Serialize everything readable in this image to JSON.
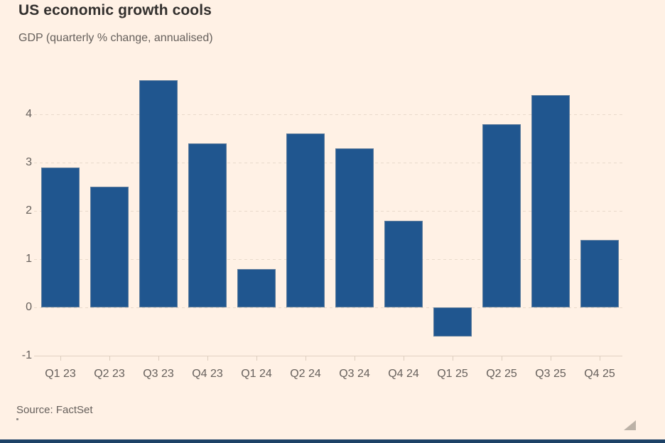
{
  "header": {
    "title": "US economic growth cools",
    "subtitle": "GDP (quarterly % change, annualised)"
  },
  "footer": {
    "source": "Source: FactSet"
  },
  "colors": {
    "background": "#FFF1E5",
    "bar": "#20568F",
    "title_text": "#33302E",
    "muted_text": "#66605C",
    "gridline": "#E9DACB",
    "baseline": "#E0D1C2",
    "footer_bar": "#1C4166",
    "resize_handle": "#BCB2A7"
  },
  "chart_data": {
    "type": "bar",
    "title": "US economic growth cools",
    "subtitle": "GDP (quarterly % change, annualised)",
    "categories": [
      "Q1 23",
      "Q2 23",
      "Q3 23",
      "Q4 23",
      "Q1 24",
      "Q2 24",
      "Q3 24",
      "Q4 24",
      "Q1 25",
      "Q2 25",
      "Q3 25",
      "Q4 25"
    ],
    "values": [
      2.9,
      2.5,
      4.7,
      3.4,
      0.8,
      3.6,
      3.3,
      1.8,
      -0.6,
      3.8,
      4.4,
      1.4
    ],
    "xlabel": "",
    "ylabel": "",
    "ylim": [
      -1,
      4.8
    ],
    "yticks": [
      4,
      3,
      2,
      1,
      0,
      -1
    ],
    "grid": "horizontal-dashed",
    "legend": "none",
    "bar_color": "#20568F",
    "source": "Source: FactSet"
  }
}
